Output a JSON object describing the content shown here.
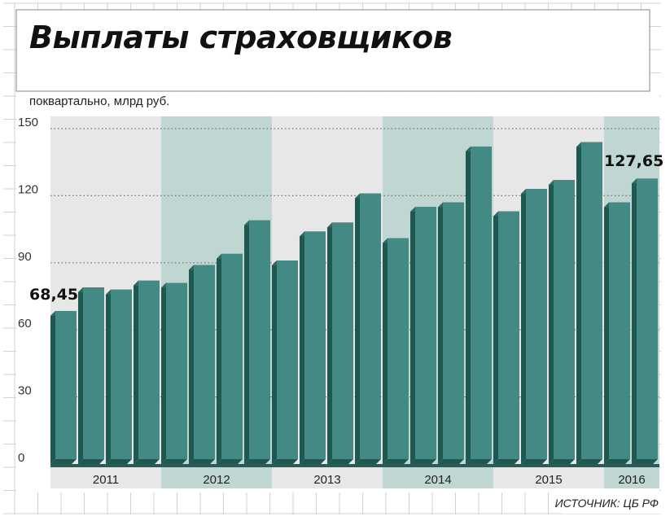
{
  "title": "Выплаты страховщиков",
  "subtitle": "поквартально, млрд руб.",
  "source": "ИСТОЧНИК: ЦБ РФ",
  "colors": {
    "bar_face": "#448a84",
    "bar_side": "#1f5751",
    "band_light": "#e7e7e8",
    "band_dark": "#bfd6d3",
    "grid": "#d2d2d2"
  },
  "chart_data": {
    "type": "bar",
    "title": "Выплаты страховщиков",
    "ylabel": "поквартально, млрд руб.",
    "xlabel": "",
    "ylim": [
      0,
      150
    ],
    "yticks": [
      "0",
      "30",
      "60",
      "90",
      "120",
      "150"
    ],
    "years": [
      "2011",
      "2012",
      "2013",
      "2014",
      "2015",
      "2016"
    ],
    "quarters_per_year": [
      4,
      4,
      4,
      4,
      4,
      2
    ],
    "values": [
      68.45,
      79,
      78,
      82,
      81,
      89,
      94,
      109,
      91,
      104,
      108,
      121,
      101,
      115,
      117,
      142,
      113,
      123,
      127,
      144,
      117,
      127.65
    ],
    "data_labels": [
      {
        "index": 0,
        "text": "68,45"
      },
      {
        "index": 21,
        "text": "127,65"
      }
    ]
  }
}
